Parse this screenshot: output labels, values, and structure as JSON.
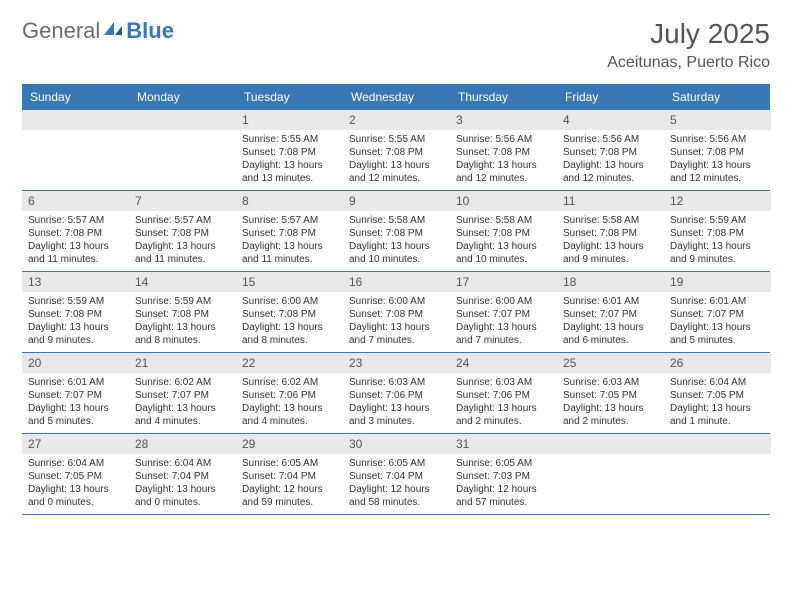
{
  "logo": {
    "general": "General",
    "blue": "Blue"
  },
  "title": "July 2025",
  "location": "Aceitunas, Puerto Rico",
  "colors": {
    "header_bg": "#3a78b5",
    "header_text": "#ffffff",
    "daynum_bg": "#e8e8e8",
    "text": "#333333",
    "title_text": "#555555",
    "border": "#3a78b5"
  },
  "day_labels": [
    "Sunday",
    "Monday",
    "Tuesday",
    "Wednesday",
    "Thursday",
    "Friday",
    "Saturday"
  ],
  "weeks": [
    [
      {
        "n": "",
        "sr": "",
        "ss": "",
        "dl": ""
      },
      {
        "n": "",
        "sr": "",
        "ss": "",
        "dl": ""
      },
      {
        "n": "1",
        "sr": "Sunrise: 5:55 AM",
        "ss": "Sunset: 7:08 PM",
        "dl": "Daylight: 13 hours and 13 minutes."
      },
      {
        "n": "2",
        "sr": "Sunrise: 5:55 AM",
        "ss": "Sunset: 7:08 PM",
        "dl": "Daylight: 13 hours and 12 minutes."
      },
      {
        "n": "3",
        "sr": "Sunrise: 5:56 AM",
        "ss": "Sunset: 7:08 PM",
        "dl": "Daylight: 13 hours and 12 minutes."
      },
      {
        "n": "4",
        "sr": "Sunrise: 5:56 AM",
        "ss": "Sunset: 7:08 PM",
        "dl": "Daylight: 13 hours and 12 minutes."
      },
      {
        "n": "5",
        "sr": "Sunrise: 5:56 AM",
        "ss": "Sunset: 7:08 PM",
        "dl": "Daylight: 13 hours and 12 minutes."
      }
    ],
    [
      {
        "n": "6",
        "sr": "Sunrise: 5:57 AM",
        "ss": "Sunset: 7:08 PM",
        "dl": "Daylight: 13 hours and 11 minutes."
      },
      {
        "n": "7",
        "sr": "Sunrise: 5:57 AM",
        "ss": "Sunset: 7:08 PM",
        "dl": "Daylight: 13 hours and 11 minutes."
      },
      {
        "n": "8",
        "sr": "Sunrise: 5:57 AM",
        "ss": "Sunset: 7:08 PM",
        "dl": "Daylight: 13 hours and 11 minutes."
      },
      {
        "n": "9",
        "sr": "Sunrise: 5:58 AM",
        "ss": "Sunset: 7:08 PM",
        "dl": "Daylight: 13 hours and 10 minutes."
      },
      {
        "n": "10",
        "sr": "Sunrise: 5:58 AM",
        "ss": "Sunset: 7:08 PM",
        "dl": "Daylight: 13 hours and 10 minutes."
      },
      {
        "n": "11",
        "sr": "Sunrise: 5:58 AM",
        "ss": "Sunset: 7:08 PM",
        "dl": "Daylight: 13 hours and 9 minutes."
      },
      {
        "n": "12",
        "sr": "Sunrise: 5:59 AM",
        "ss": "Sunset: 7:08 PM",
        "dl": "Daylight: 13 hours and 9 minutes."
      }
    ],
    [
      {
        "n": "13",
        "sr": "Sunrise: 5:59 AM",
        "ss": "Sunset: 7:08 PM",
        "dl": "Daylight: 13 hours and 9 minutes."
      },
      {
        "n": "14",
        "sr": "Sunrise: 5:59 AM",
        "ss": "Sunset: 7:08 PM",
        "dl": "Daylight: 13 hours and 8 minutes."
      },
      {
        "n": "15",
        "sr": "Sunrise: 6:00 AM",
        "ss": "Sunset: 7:08 PM",
        "dl": "Daylight: 13 hours and 8 minutes."
      },
      {
        "n": "16",
        "sr": "Sunrise: 6:00 AM",
        "ss": "Sunset: 7:08 PM",
        "dl": "Daylight: 13 hours and 7 minutes."
      },
      {
        "n": "17",
        "sr": "Sunrise: 6:00 AM",
        "ss": "Sunset: 7:07 PM",
        "dl": "Daylight: 13 hours and 7 minutes."
      },
      {
        "n": "18",
        "sr": "Sunrise: 6:01 AM",
        "ss": "Sunset: 7:07 PM",
        "dl": "Daylight: 13 hours and 6 minutes."
      },
      {
        "n": "19",
        "sr": "Sunrise: 6:01 AM",
        "ss": "Sunset: 7:07 PM",
        "dl": "Daylight: 13 hours and 5 minutes."
      }
    ],
    [
      {
        "n": "20",
        "sr": "Sunrise: 6:01 AM",
        "ss": "Sunset: 7:07 PM",
        "dl": "Daylight: 13 hours and 5 minutes."
      },
      {
        "n": "21",
        "sr": "Sunrise: 6:02 AM",
        "ss": "Sunset: 7:07 PM",
        "dl": "Daylight: 13 hours and 4 minutes."
      },
      {
        "n": "22",
        "sr": "Sunrise: 6:02 AM",
        "ss": "Sunset: 7:06 PM",
        "dl": "Daylight: 13 hours and 4 minutes."
      },
      {
        "n": "23",
        "sr": "Sunrise: 6:03 AM",
        "ss": "Sunset: 7:06 PM",
        "dl": "Daylight: 13 hours and 3 minutes."
      },
      {
        "n": "24",
        "sr": "Sunrise: 6:03 AM",
        "ss": "Sunset: 7:06 PM",
        "dl": "Daylight: 13 hours and 2 minutes."
      },
      {
        "n": "25",
        "sr": "Sunrise: 6:03 AM",
        "ss": "Sunset: 7:05 PM",
        "dl": "Daylight: 13 hours and 2 minutes."
      },
      {
        "n": "26",
        "sr": "Sunrise: 6:04 AM",
        "ss": "Sunset: 7:05 PM",
        "dl": "Daylight: 13 hours and 1 minute."
      }
    ],
    [
      {
        "n": "27",
        "sr": "Sunrise: 6:04 AM",
        "ss": "Sunset: 7:05 PM",
        "dl": "Daylight: 13 hours and 0 minutes."
      },
      {
        "n": "28",
        "sr": "Sunrise: 6:04 AM",
        "ss": "Sunset: 7:04 PM",
        "dl": "Daylight: 13 hours and 0 minutes."
      },
      {
        "n": "29",
        "sr": "Sunrise: 6:05 AM",
        "ss": "Sunset: 7:04 PM",
        "dl": "Daylight: 12 hours and 59 minutes."
      },
      {
        "n": "30",
        "sr": "Sunrise: 6:05 AM",
        "ss": "Sunset: 7:04 PM",
        "dl": "Daylight: 12 hours and 58 minutes."
      },
      {
        "n": "31",
        "sr": "Sunrise: 6:05 AM",
        "ss": "Sunset: 7:03 PM",
        "dl": "Daylight: 12 hours and 57 minutes."
      },
      {
        "n": "",
        "sr": "",
        "ss": "",
        "dl": ""
      },
      {
        "n": "",
        "sr": "",
        "ss": "",
        "dl": ""
      }
    ]
  ]
}
